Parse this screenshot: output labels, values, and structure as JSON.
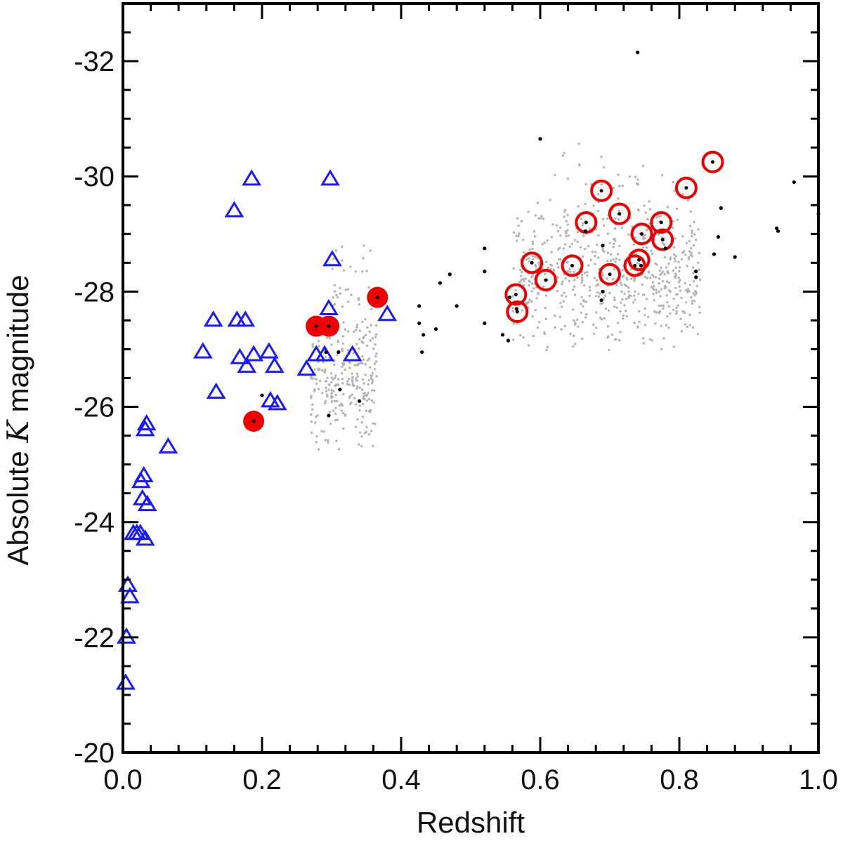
{
  "chart_data": {
    "type": "scatter",
    "title": "",
    "xlabel": "Redshift",
    "ylabel_prefix": "Absolute ",
    "ylabel_var": "K",
    "ylabel_suffix": " magnitude",
    "xlim": [
      0.0,
      1.0
    ],
    "ylim": [
      -20,
      -33
    ],
    "y_axis_inverted": true,
    "grid": false,
    "legend": "none",
    "x_ticks": [
      {
        "value": 0.0,
        "label": "0.0"
      },
      {
        "value": 0.2,
        "label": "0.2"
      },
      {
        "value": 0.4,
        "label": "0.4"
      },
      {
        "value": 0.6,
        "label": "0.6"
      },
      {
        "value": 0.8,
        "label": "0.8"
      },
      {
        "value": 1.0,
        "label": "1.0"
      }
    ],
    "y_ticks": [
      {
        "value": -20,
        "label": "-20"
      },
      {
        "value": -22,
        "label": "-22"
      },
      {
        "value": -24,
        "label": "-24"
      },
      {
        "value": -26,
        "label": "-26"
      },
      {
        "value": -28,
        "label": "-28"
      },
      {
        "value": -30,
        "label": "-30"
      },
      {
        "value": -32,
        "label": "-32"
      }
    ],
    "colors": {
      "triangles": "#1a1aff",
      "filled_circles": "#ee0000",
      "open_circles": "#ee0000",
      "black_points": "#000000",
      "grey_points": "#b4b4b4"
    },
    "series": [
      {
        "marker": "open-triangle",
        "color": "#1a1aff",
        "points": [
          [
            0.004,
            -21.2
          ],
          [
            0.005,
            -22.0
          ],
          [
            0.007,
            -22.9
          ],
          [
            0.01,
            -22.7
          ],
          [
            0.015,
            -23.8
          ],
          [
            0.02,
            -23.8
          ],
          [
            0.025,
            -23.8
          ],
          [
            0.028,
            -24.4
          ],
          [
            0.026,
            -24.7
          ],
          [
            0.03,
            -24.8
          ],
          [
            0.035,
            -24.3
          ],
          [
            0.032,
            -23.7
          ],
          [
            0.032,
            -25.6
          ],
          [
            0.034,
            -25.7
          ],
          [
            0.065,
            -25.3
          ],
          [
            0.115,
            -26.95
          ],
          [
            0.13,
            -27.5
          ],
          [
            0.134,
            -26.25
          ],
          [
            0.16,
            -29.4
          ],
          [
            0.164,
            -27.5
          ],
          [
            0.168,
            -26.85
          ],
          [
            0.176,
            -27.5
          ],
          [
            0.178,
            -26.7
          ],
          [
            0.185,
            -29.95
          ],
          [
            0.188,
            -26.9
          ],
          [
            0.21,
            -26.95
          ],
          [
            0.212,
            -26.1
          ],
          [
            0.218,
            -26.7
          ],
          [
            0.222,
            -26.05
          ],
          [
            0.264,
            -26.65
          ],
          [
            0.278,
            -26.9
          ],
          [
            0.29,
            -26.9
          ],
          [
            0.296,
            -27.7
          ],
          [
            0.298,
            -29.95
          ],
          [
            0.301,
            -28.55
          ],
          [
            0.33,
            -26.9
          ],
          [
            0.38,
            -27.6
          ]
        ]
      },
      {
        "marker": "filled-circle",
        "color": "#ee0000",
        "points": [
          [
            0.188,
            -25.75
          ],
          [
            0.278,
            -27.4
          ],
          [
            0.296,
            -27.4
          ],
          [
            0.366,
            -27.9
          ]
        ]
      },
      {
        "marker": "open-circle",
        "color": "#ee0000",
        "points": [
          [
            0.565,
            -27.95
          ],
          [
            0.567,
            -27.65
          ],
          [
            0.588,
            -28.5
          ],
          [
            0.608,
            -28.2
          ],
          [
            0.646,
            -28.45
          ],
          [
            0.666,
            -29.2
          ],
          [
            0.688,
            -29.75
          ],
          [
            0.7,
            -28.3
          ],
          [
            0.714,
            -29.35
          ],
          [
            0.736,
            -28.45
          ],
          [
            0.742,
            -28.55
          ],
          [
            0.746,
            -29.0
          ],
          [
            0.774,
            -29.2
          ],
          [
            0.776,
            -28.9
          ],
          [
            0.81,
            -29.8
          ],
          [
            0.848,
            -30.25
          ]
        ]
      },
      {
        "marker": "black-dot",
        "color": "#000000",
        "points": [
          [
            0.74,
            -32.15
          ],
          [
            0.6,
            -30.65
          ],
          [
            0.965,
            -29.9
          ],
          [
            0.86,
            -29.45
          ],
          [
            1.0,
            -29.35
          ],
          [
            0.94,
            -29.1
          ],
          [
            0.942,
            -29.05
          ],
          [
            0.78,
            -28.75
          ],
          [
            0.856,
            -28.95
          ],
          [
            0.85,
            -28.65
          ],
          [
            0.88,
            -28.6
          ],
          [
            0.745,
            -28.45
          ],
          [
            0.69,
            -28.8
          ],
          [
            0.52,
            -28.75
          ],
          [
            0.52,
            -28.35
          ],
          [
            0.47,
            -28.3
          ],
          [
            0.456,
            -28.15
          ],
          [
            0.426,
            -27.75
          ],
          [
            0.48,
            -27.75
          ],
          [
            0.426,
            -27.45
          ],
          [
            0.45,
            -27.35
          ],
          [
            0.432,
            -27.25
          ],
          [
            0.52,
            -27.45
          ],
          [
            0.546,
            -27.25
          ],
          [
            0.554,
            -27.15
          ],
          [
            0.43,
            -26.95
          ],
          [
            0.688,
            -27.85
          ],
          [
            0.69,
            -28.0
          ],
          [
            0.824,
            -28.25
          ],
          [
            0.2,
            -26.2
          ],
          [
            0.312,
            -26.3
          ],
          [
            0.34,
            -26.1
          ],
          [
            0.296,
            -25.85
          ],
          [
            0.292,
            -26.95
          ],
          [
            0.31,
            -26.95
          ],
          [
            0.556,
            -27.9
          ],
          [
            0.566,
            -27.7
          ],
          [
            0.665,
            -29.05
          ],
          [
            0.824,
            -28.35
          ]
        ]
      }
    ],
    "background_cloud": [
      {
        "x_range": [
          0.27,
          0.365
        ],
        "y_range": [
          -25.1,
          -27.8
        ],
        "count": 260
      },
      {
        "x_range": [
          0.3,
          0.36
        ],
        "y_range": [
          -27.0,
          -29.0
        ],
        "count": 40
      },
      {
        "x_range": [
          0.56,
          0.83
        ],
        "y_range": [
          -26.9,
          -29.6
        ],
        "count": 620
      },
      {
        "x_range": [
          0.6,
          0.82
        ],
        "y_range": [
          -28.5,
          -30.7
        ],
        "count": 60
      }
    ]
  }
}
